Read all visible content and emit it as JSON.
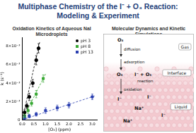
{
  "title": "Multiphase Chemistry of the I⁻ + O₃ Reaction: Modeling & Experiment",
  "chart_data": {
    "type": "scatter",
    "title": "Oxidation Kinetics of Aqueous NaI Microdroplets",
    "x_label": "[O₃] (ppm)",
    "y_label": "k (s⁻¹)",
    "series": [
      {
        "name": "pH 3",
        "color": "#000000",
        "marker": "circle",
        "x": [
          0.1,
          0.2,
          0.3,
          0.45,
          0.6,
          0.7
        ],
        "values": [
          0.0008,
          0.0015,
          0.0025,
          0.004,
          0.0065,
          0.0078
        ],
        "errors": [
          0.0003,
          0.0003,
          0.0004,
          0.0004,
          0.0005,
          0.0005
        ],
        "fit": {
          "x": [
            0,
            0.75
          ],
          "values": [
            0,
            0.0085
          ],
          "line_style": "dashed"
        }
      },
      {
        "name": "pH 8",
        "color": "#3aa935",
        "marker": "square",
        "x": [
          0.1,
          0.25,
          0.4,
          0.6,
          0.9
        ],
        "values": [
          0.0004,
          0.001,
          0.0018,
          0.0028,
          0.0045
        ],
        "errors": [
          0.0002,
          0.0003,
          0.0003,
          0.0004,
          0.0004
        ],
        "fit": {
          "x": [
            0,
            1.0
          ],
          "values": [
            0,
            0.005
          ],
          "line_style": "dashed"
        }
      },
      {
        "name": "pH 13",
        "color": "#2b3fb0",
        "marker": "square",
        "x": [
          0.1,
          0.3,
          0.6,
          1.0,
          1.5,
          2.0,
          3.0
        ],
        "values": [
          0.0002,
          0.0004,
          0.0006,
          0.001,
          0.0013,
          0.0016,
          0.0025
        ],
        "errors": [
          0.0002,
          0.0002,
          0.0002,
          0.0003,
          0.0003,
          0.0003,
          0.0003
        ],
        "fit": {
          "x": [
            0,
            3.1
          ],
          "values": [
            0,
            0.0026
          ],
          "line_style": "dashed"
        }
      }
    ],
    "xlim": [
      0,
      3.2
    ],
    "xticks": [
      {
        "value": 0,
        "label": "0.0"
      },
      0.5,
      {
        "value": 1,
        "label": "1.0"
      },
      1.5,
      {
        "value": 2,
        "label": "2.0"
      },
      2.5,
      {
        "value": 3,
        "label": "3.0"
      }
    ],
    "ylim": [
      0,
      0.009
    ],
    "yticks": [
      0,
      {
        "value": 0.002,
        "label": "2×10⁻³"
      },
      {
        "value": 0.004,
        "label": "4×10⁻³"
      },
      {
        "value": 0.006,
        "label": "6×10⁻³"
      },
      {
        "value": 0.008,
        "label": "8×10⁻³"
      }
    ],
    "legend": "upper right",
    "grid": false
  },
  "diagram": {
    "title": "Molecular Dynamics and Kinetic Simulations",
    "regions": [
      "Gas",
      "Interface",
      "Liquid"
    ],
    "gas": {
      "species": "O₃",
      "steps": [
        "diffusion",
        "adsorption"
      ]
    },
    "interface": {
      "species": [
        "O₃",
        "I⁻ + O₃"
      ],
      "process": "reaction"
    },
    "liquid": {
      "process": "oxidation",
      "ions": [
        "I⁻",
        "I⁻",
        "Na⁺",
        "I⁻",
        "Na⁺"
      ]
    }
  }
}
